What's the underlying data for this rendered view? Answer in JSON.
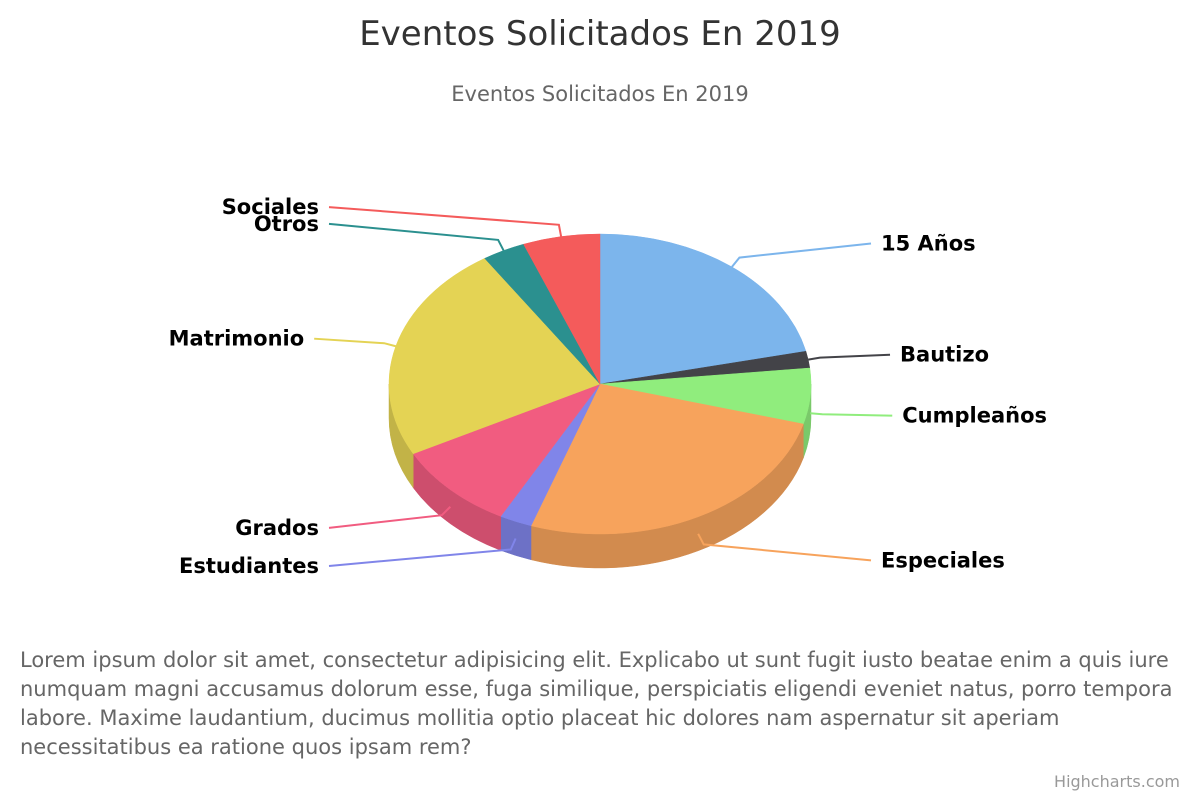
{
  "chart_data": {
    "type": "pie",
    "title": "Eventos Solicitados En 2019",
    "subtitle": "Eventos Solicitados En 2019",
    "three_d": true,
    "series": [
      {
        "data": [
          {
            "name": "15 Años",
            "value": 21.5,
            "color": "#7cb5ec"
          },
          {
            "name": "Bautizo",
            "value": 1.8,
            "color": "#434348"
          },
          {
            "name": "Cumpleaños",
            "value": 6.0,
            "color": "#90ed7d"
          },
          {
            "name": "Especiales",
            "value": 26.0,
            "color": "#f7a35c"
          },
          {
            "name": "Estudiantes",
            "value": 2.5,
            "color": "#8085e9"
          },
          {
            "name": "Grados",
            "value": 9.5,
            "color": "#f15c80"
          },
          {
            "name": "Matrimonio",
            "value": 23.5,
            "color": "#e4d354"
          },
          {
            "name": "Otros",
            "value": 3.3,
            "color": "#2b908f"
          },
          {
            "name": "Sociales",
            "value": 5.9,
            "color": "#f45b5b"
          }
        ]
      }
    ]
  },
  "description": "Lorem ipsum dolor sit amet, consectetur adipisicing elit. Explicabo ut sunt fugit iusto beatae enim a quis iure numquam magni accusamus dolorum esse, fuga similique, perspiciatis eligendi eveniet natus, porro tempora labore. Maxime laudantium, ducimus mollitia optio placeat hic dolores nam aspernatur sit aperiam necessitatibus ea ratione quos ipsam rem?",
  "credits": "Highcharts.com"
}
